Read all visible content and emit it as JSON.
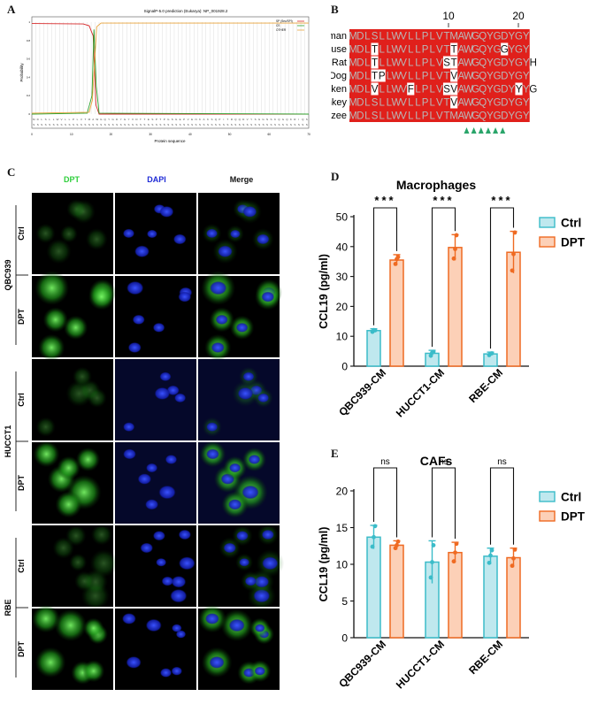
{
  "panels": {
    "A": "A",
    "B": "B",
    "C": "C",
    "D": "D",
    "E": "E"
  },
  "panel_a": {
    "title": "SignalP-5.0 prediction (Eukarya): NP_001928.2",
    "legend": [
      "SP (Sec/SPI)",
      "CS",
      "OTHER"
    ],
    "xlabel": "Protein sequence",
    "ylabel": "Probability",
    "y_ticks": [
      "0",
      "0.2",
      "0.4",
      "0.6",
      "0.8",
      "1"
    ],
    "x_ticks": [
      "0",
      "10",
      "20",
      "30",
      "40",
      "50",
      "60",
      "70"
    ],
    "colors": {
      "sp": "#d62728",
      "cs": "#2ca02c",
      "other": "#e8a33b"
    }
  },
  "panel_b": {
    "positions": [
      "10",
      "20"
    ],
    "species": [
      "Human",
      "Mouse",
      "Rat",
      "Dog",
      "Chicken",
      "Monkey",
      "Chimpanzee"
    ],
    "sequences": [
      "MDLSLLWVLLPLVTMAWGQYGDYGY",
      "MDLTLLWVLLPLVTTAWGQYGGYGY",
      "MDLTLLWVLLPLVSTAWGQYGDYGYH",
      "MDLTPLWVLLPLVTVAWGQYGDYGY",
      "MDLVLLWVFLPLVSVAWGQYGDYYYG",
      "MDLSLLWVLLPLVTVAWGQYGDYGY",
      "MDLSLLWVLLPLVTMAWGQYGDYGY"
    ],
    "highlight": [
      [],
      [
        3,
        14,
        21
      ],
      [
        3,
        13,
        14
      ],
      [
        3,
        4,
        14
      ],
      [
        3,
        8,
        13,
        14,
        23
      ],
      [
        14
      ],
      []
    ],
    "arrow_count": 6,
    "colors": {
      "conserved": "#e0201b",
      "text": "#b8b8b8",
      "variant_bg": "#ffffff",
      "variant_text": "#111111",
      "arrow": "#2aa56a"
    }
  },
  "panel_c": {
    "columns": [
      "DPT",
      "DAPI",
      "Merge"
    ],
    "column_colors": [
      "#2fcf3c",
      "#1f2bd6",
      "#111111"
    ],
    "cell_lines": [
      "QBC939",
      "HUCCT1",
      "RBE"
    ],
    "conditions": [
      "Ctrl",
      "DPT"
    ]
  },
  "chart_data": [
    {
      "type": "bar",
      "title": "Macrophages",
      "ylabel": "CCL19 (pg/ml)",
      "categories": [
        "QBC939-CM",
        "HUCCT1-CM",
        "RBE-CM"
      ],
      "series": [
        {
          "name": "Ctrl",
          "values": [
            11.9,
            4.3,
            4.1
          ],
          "errors": [
            0.6,
            1.0,
            0.6
          ],
          "points": [
            [
              11.5,
              12.1,
              12.0
            ],
            [
              3.5,
              4.5,
              4.8
            ],
            [
              3.7,
              4.2,
              4.3
            ]
          ]
        },
        {
          "name": "DPT",
          "values": [
            35.5,
            39.7,
            38.1
          ],
          "errors": [
            1.8,
            4.3,
            7.0
          ],
          "points": [
            [
              34.2,
              35.8,
              36.5
            ],
            [
              36.0,
              39.2,
              43.8
            ],
            [
              32.0,
              37.5,
              44.7
            ]
          ]
        }
      ],
      "significance": [
        "***",
        "***",
        "***"
      ],
      "ylim": [
        0,
        50
      ],
      "yticks": [
        0,
        10,
        20,
        30,
        40,
        50
      ],
      "colors": {
        "ctrl_fill": "#bfe8ee",
        "ctrl_stroke": "#3bbcc9",
        "dpt_fill": "#fcd0b7",
        "dpt_stroke": "#ef6a22"
      }
    },
    {
      "type": "bar",
      "title": "CAFs",
      "ylabel": "CCL19 (pg/ml)",
      "categories": [
        "QBC939-CM",
        "HUCCT1-CM",
        "RBE-CM"
      ],
      "series": [
        {
          "name": "Ctrl",
          "values": [
            13.7,
            10.3,
            11.1
          ],
          "errors": [
            1.6,
            2.9,
            1.1
          ],
          "points": [
            [
              12.4,
              13.7,
              15.2
            ],
            [
              8.2,
              10.3,
              12.6
            ],
            [
              10.2,
              11.2,
              11.9
            ]
          ]
        },
        {
          "name": "DPT",
          "values": [
            12.6,
            11.6,
            10.9
          ],
          "errors": [
            0.6,
            1.4,
            1.3
          ],
          "points": [
            [
              12.2,
              12.6,
              13.1
            ],
            [
              10.4,
              11.6,
              12.8
            ],
            [
              9.8,
              10.8,
              12.0
            ]
          ]
        }
      ],
      "significance": [
        "ns",
        "ns",
        "ns"
      ],
      "ylim": [
        0,
        20
      ],
      "yticks": [
        0,
        5,
        10,
        15,
        20
      ],
      "colors": {
        "ctrl_fill": "#bfe8ee",
        "ctrl_stroke": "#3bbcc9",
        "dpt_fill": "#fcd0b7",
        "dpt_stroke": "#ef6a22"
      }
    }
  ]
}
